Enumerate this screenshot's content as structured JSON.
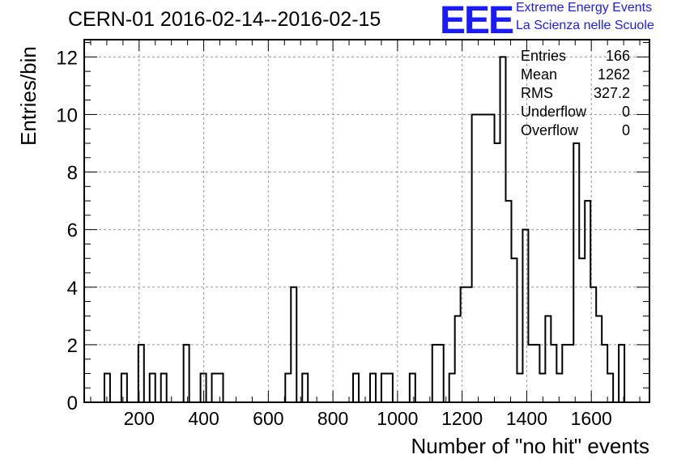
{
  "header": {
    "title": "CERN-01 2016-02-14--2016-02-15",
    "logo_text": "EEE",
    "logo_line1": "Extreme Energy Events",
    "logo_line2": "La Scienza nelle Scuole",
    "logo_color": "#1a1aff"
  },
  "stats": [
    {
      "name": "Entries",
      "value": "166"
    },
    {
      "name": "Mean",
      "value": "1262"
    },
    {
      "name": "RMS",
      "value": "327.2"
    },
    {
      "name": "Underflow",
      "value": "0"
    },
    {
      "name": "Overflow",
      "value": "0"
    }
  ],
  "chart_data": {
    "type": "histogram",
    "xlabel": "Number of \"no hit\" events",
    "ylabel": "Entries/bin",
    "xlim": [
      30,
      1780
    ],
    "ylim": [
      0,
      12.6
    ],
    "xticks": [
      200,
      400,
      600,
      800,
      1000,
      1200,
      1400,
      1600
    ],
    "yticks": [
      0,
      2,
      4,
      6,
      8,
      10,
      12
    ],
    "grid": true,
    "bin_width": 17.5,
    "bins": [
      [
        92.5,
        1
      ],
      [
        145,
        1
      ],
      [
        197.5,
        2
      ],
      [
        232.5,
        1
      ],
      [
        267.5,
        1
      ],
      [
        337.5,
        2
      ],
      [
        390,
        1
      ],
      [
        425,
        1
      ],
      [
        442.5,
        1
      ],
      [
        652.5,
        1
      ],
      [
        670,
        4
      ],
      [
        705,
        1
      ],
      [
        862.5,
        1
      ],
      [
        915,
        1
      ],
      [
        950,
        1
      ],
      [
        967.5,
        1
      ],
      [
        1037.5,
        1
      ],
      [
        1107.5,
        2
      ],
      [
        1125,
        2
      ],
      [
        1160,
        1
      ],
      [
        1177.5,
        3
      ],
      [
        1195,
        4
      ],
      [
        1212.5,
        4
      ],
      [
        1230,
        10
      ],
      [
        1247.5,
        10
      ],
      [
        1265,
        10
      ],
      [
        1282.5,
        10
      ],
      [
        1300,
        9
      ],
      [
        1317.5,
        12
      ],
      [
        1335,
        7
      ],
      [
        1352.5,
        5
      ],
      [
        1370,
        1
      ],
      [
        1387.5,
        6
      ],
      [
        1405,
        2
      ],
      [
        1422.5,
        2
      ],
      [
        1440,
        1
      ],
      [
        1457.5,
        3
      ],
      [
        1475,
        2
      ],
      [
        1492.5,
        1
      ],
      [
        1510,
        2
      ],
      [
        1527.5,
        2
      ],
      [
        1545,
        9
      ],
      [
        1562.5,
        5
      ],
      [
        1580,
        7
      ],
      [
        1597.5,
        4
      ],
      [
        1615,
        3
      ],
      [
        1632.5,
        2
      ],
      [
        1650,
        1
      ],
      [
        1685,
        2
      ]
    ]
  }
}
